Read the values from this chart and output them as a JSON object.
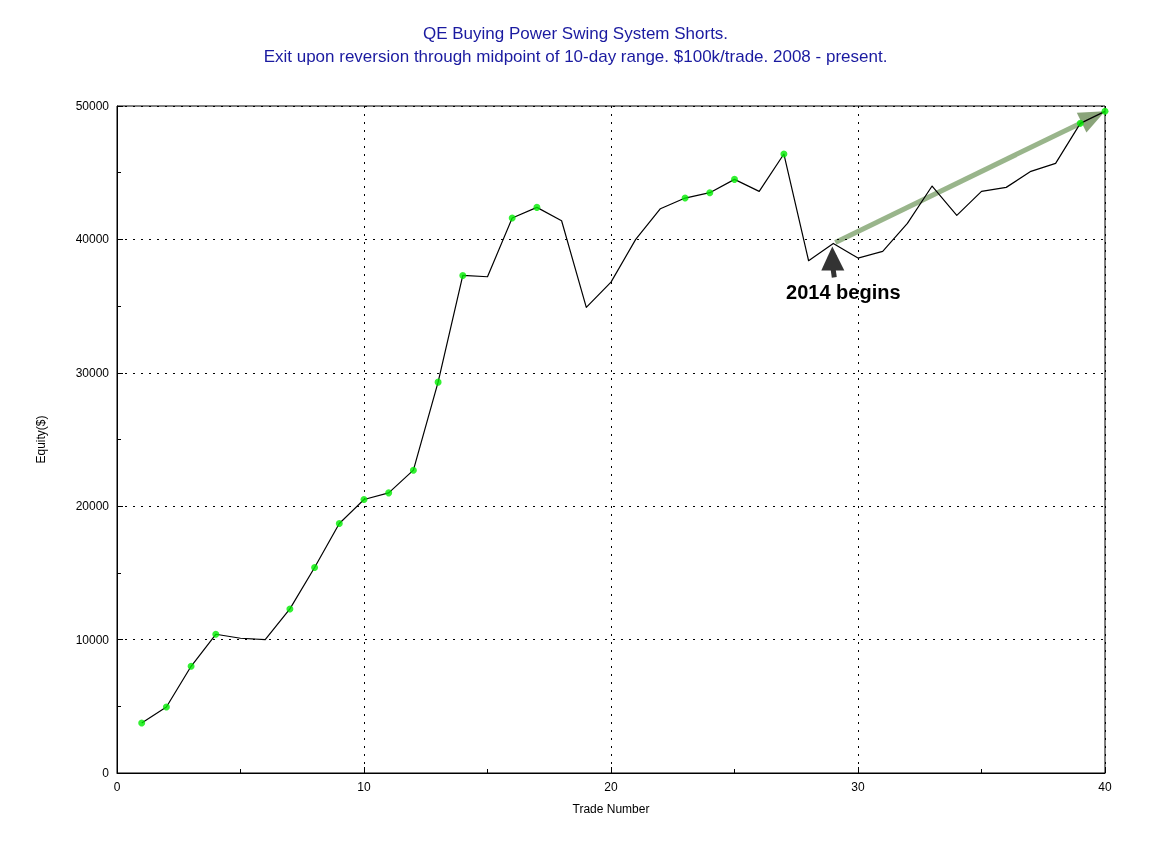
{
  "chart_data": {
    "type": "line",
    "title": "QE Buying Power Swing System Shorts.",
    "subtitle": "Exit upon reversion through midpoint of 10-day range. $100k/trade. 2008 - present.",
    "xlabel": "Trade Number",
    "ylabel": "Equity($)",
    "x": [
      1,
      2,
      3,
      4,
      5,
      6,
      7,
      8,
      9,
      10,
      11,
      12,
      13,
      14,
      15,
      16,
      17,
      18,
      19,
      20,
      21,
      22,
      23,
      24,
      25,
      26,
      27,
      28,
      29,
      30,
      31,
      32,
      33,
      34,
      35,
      36,
      37,
      38,
      39,
      40
    ],
    "series": [
      {
        "color": "#000000",
        "marker": "none",
        "values": [
          3750,
          4950,
          8000,
          10400,
          10100,
          10000,
          12300,
          15400,
          18700,
          20500,
          21000,
          22700,
          29300,
          37300,
          37200,
          41600,
          42400,
          41400,
          34900,
          36800,
          40000,
          42300,
          43100,
          43500,
          44500,
          43600,
          46400,
          38400,
          39700,
          38600,
          39100,
          41200,
          44000,
          41800,
          43600,
          43900,
          45100,
          45700,
          48700,
          49600
        ]
      },
      {
        "type": "scatter",
        "color": "#00ee00",
        "marker": "circle",
        "x": [
          1,
          2,
          3,
          4,
          7,
          8,
          9,
          10,
          11,
          12,
          13,
          14,
          16,
          17,
          23,
          24,
          25,
          27,
          39,
          40
        ],
        "values": [
          3750,
          4950,
          8000,
          10400,
          12300,
          15400,
          18700,
          20500,
          21000,
          22700,
          29300,
          37300,
          41600,
          42400,
          43100,
          43500,
          44500,
          46400,
          48700,
          49600
        ]
      }
    ],
    "annotations": [
      {
        "text": "2014 begins",
        "x": 29,
        "y": 39700
      }
    ],
    "xlim": [
      0,
      40
    ],
    "xticks": [
      0,
      {
        "value": 5,
        "label": null
      },
      10,
      {
        "value": 15,
        "label": null
      },
      20,
      {
        "value": 25,
        "label": null
      },
      30,
      {
        "value": 35,
        "label": null
      },
      40
    ],
    "ylim": [
      0,
      50000
    ],
    "yticks": [
      0,
      {
        "value": 5000,
        "label": null
      },
      10000,
      {
        "value": 15000,
        "label": null
      },
      20000,
      {
        "value": 25000,
        "label": null
      },
      30000,
      {
        "value": 35000,
        "label": null
      },
      40000,
      {
        "value": 45000,
        "label": null
      },
      50000
    ],
    "grid": true
  }
}
